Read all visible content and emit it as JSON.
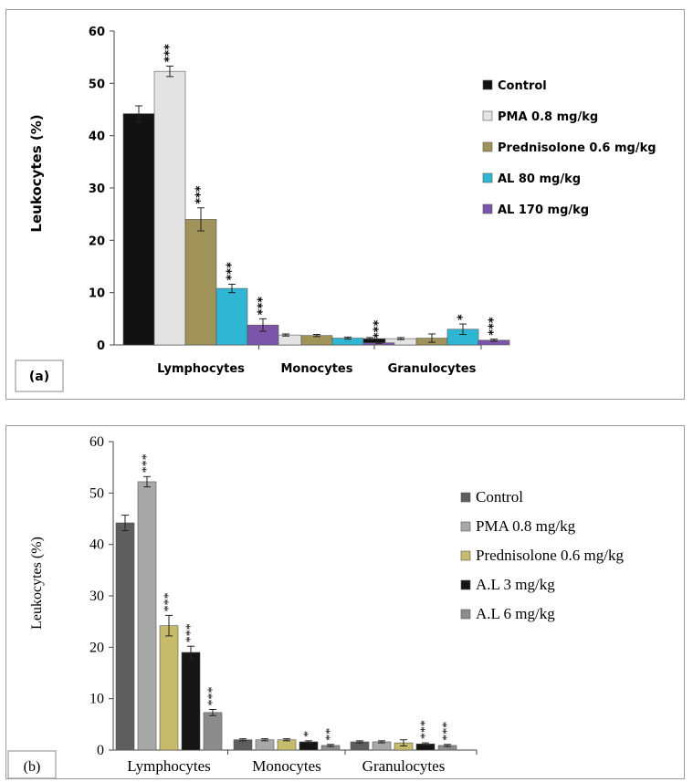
{
  "chart_data": [
    {
      "type": "bar",
      "panel_label": "(a)",
      "ylabel": "Leukocytes (%)",
      "ylim": [
        0,
        60
      ],
      "yticks": [
        "0",
        "10",
        "20",
        "30",
        "40",
        "50",
        "60"
      ],
      "categories": [
        "Lymphocytes",
        "Monocytes",
        "Granulocytes"
      ],
      "grid": false,
      "legend_position": "right",
      "series": [
        {
          "name": "Control",
          "color": "#111111",
          "values": [
            44.2,
            1.8,
            1.2
          ],
          "errors": [
            1.5,
            0.2,
            0.2
          ],
          "sig": [
            "",
            "",
            ""
          ]
        },
        {
          "name": "PMA 0.8 mg/kg",
          "color": "#e4e4e4",
          "values": [
            52.3,
            1.9,
            1.2
          ],
          "errors": [
            1.0,
            0.2,
            0.2
          ],
          "sig": [
            "***",
            "",
            ""
          ]
        },
        {
          "name": "Prednisolone 0.6 mg/kg",
          "color": "#a0935a",
          "values": [
            24.0,
            1.8,
            1.3
          ],
          "errors": [
            2.2,
            0.2,
            0.8
          ],
          "sig": [
            "***",
            "",
            ""
          ]
        },
        {
          "name": "AL 80 mg/kg",
          "color": "#2fb6d3",
          "values": [
            10.8,
            1.3,
            3.0
          ],
          "errors": [
            0.8,
            0.2,
            1.0
          ],
          "sig": [
            "***",
            "",
            "*"
          ]
        },
        {
          "name": "AL 170 mg/kg",
          "color": "#7a55a8",
          "values": [
            3.8,
            0.4,
            0.9
          ],
          "errors": [
            1.2,
            0.1,
            0.2
          ],
          "sig": [
            "***",
            "***",
            "***"
          ]
        }
      ]
    },
    {
      "type": "bar",
      "panel_label": "(b)",
      "ylabel": "Leukocytes (%)",
      "ylim": [
        0,
        60
      ],
      "yticks": [
        "0",
        "10",
        "20",
        "30",
        "40",
        "50",
        "60"
      ],
      "categories": [
        "Lymphocytes",
        "Monocytes",
        "Granulocytes"
      ],
      "grid": false,
      "legend_position": "right",
      "series": [
        {
          "name": "Control",
          "color": "#5e5e5e",
          "values": [
            44.2,
            2.0,
            1.6
          ],
          "errors": [
            1.5,
            0.2,
            0.2
          ],
          "sig": [
            "",
            "",
            ""
          ]
        },
        {
          "name": "PMA 0.8 mg/kg",
          "color": "#a8a8a8",
          "values": [
            52.2,
            2.0,
            1.6
          ],
          "errors": [
            1.0,
            0.2,
            0.2
          ],
          "sig": [
            "***",
            "",
            ""
          ]
        },
        {
          "name": "Prednisolone 0.6 mg/kg",
          "color": "#c6bb6a",
          "values": [
            24.2,
            2.0,
            1.4
          ],
          "errors": [
            2.0,
            0.2,
            0.6
          ],
          "sig": [
            "***",
            "",
            ""
          ]
        },
        {
          "name": "A.L 3 mg/kg",
          "color": "#151515",
          "values": [
            19.0,
            1.6,
            1.2
          ],
          "errors": [
            1.2,
            0.2,
            0.2
          ],
          "sig": [
            "***",
            "*",
            "***"
          ]
        },
        {
          "name": "A.L 6 mg/kg",
          "color": "#8c8c8c",
          "values": [
            7.3,
            0.9,
            0.9
          ],
          "errors": [
            0.6,
            0.2,
            0.2
          ],
          "sig": [
            "***",
            "**",
            "***"
          ]
        }
      ]
    }
  ]
}
